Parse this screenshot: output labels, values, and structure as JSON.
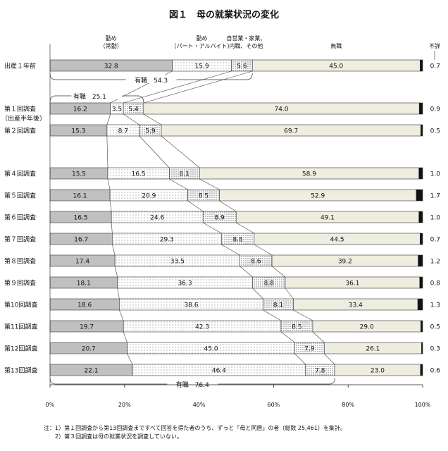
{
  "title": "図１　母の就業状況の変化",
  "chart_data": {
    "type": "bar",
    "orientation": "horizontal",
    "stacked": true,
    "normalized": true,
    "title": "図１　母の就業状況の変化",
    "xlim": [
      0,
      100
    ],
    "x_ticks": [
      "0%",
      "20%",
      "40%",
      "60%",
      "80%",
      "100%"
    ],
    "grid": false,
    "categories": [
      "出産１年前",
      "第１回調査",
      "第２回調査",
      "第４回調査",
      "第５回調査",
      "第６回調査",
      "第７回調査",
      "第８回調査",
      "第９回調査",
      "第10回調査",
      "第11回調査",
      "第12回調査",
      "第13回調査"
    ],
    "category_sublabels": {
      "第１回調査": "（出産半年後）"
    },
    "series": [
      {
        "name": "勤め（常勤）",
        "header_lines": [
          "勤め",
          "（常勤）"
        ],
        "color": "#c0c0c0",
        "values": [
          32.8,
          16.2,
          15.3,
          15.5,
          16.1,
          16.5,
          16.7,
          17.4,
          18.1,
          18.6,
          19.7,
          20.7,
          22.1
        ]
      },
      {
        "name": "勤め（パート・アルバイト）",
        "header_lines": [
          "勤め",
          "（パート・アルバイト）"
        ],
        "color": "#ffffff",
        "pattern": "dots",
        "values": [
          15.9,
          3.5,
          8.7,
          16.5,
          20.9,
          24.6,
          29.3,
          33.5,
          36.3,
          38.6,
          42.3,
          45.0,
          46.4
        ]
      },
      {
        "name": "自営業・家業、内職、その他",
        "header_lines": [
          "自営業・家業、",
          "内職、その他"
        ],
        "color": "#ffffff",
        "pattern": "dense-dots",
        "values": [
          5.6,
          5.4,
          5.9,
          8.1,
          8.5,
          8.9,
          8.8,
          8.6,
          8.8,
          8.1,
          8.5,
          7.9,
          7.8
        ]
      },
      {
        "name": "無職",
        "header_lines": [
          "無職"
        ],
        "color": "#efede0",
        "values": [
          45.0,
          74.0,
          69.7,
          58.9,
          52.9,
          49.1,
          44.5,
          39.2,
          36.1,
          33.4,
          29.0,
          26.1,
          23.0
        ]
      },
      {
        "name": "不詳",
        "header_lines": [
          "不詳"
        ],
        "color": "#111111",
        "values": [
          0.7,
          0.9,
          0.5,
          1.0,
          1.7,
          1.0,
          0.7,
          1.2,
          0.8,
          1.3,
          0.5,
          0.3,
          0.6
        ]
      }
    ],
    "annotations": [
      {
        "text": "有職　54.3",
        "row": "出産１年前",
        "value": 54.3,
        "position": "below"
      },
      {
        "text": "有職　25.1",
        "row": "第１回調査",
        "value": 25.1,
        "position": "above"
      },
      {
        "text": "有職　76.4",
        "row": "第13回調査",
        "value": 76.4,
        "position": "below"
      }
    ]
  },
  "notes": [
    "注：1）第１回調査から第13回調査まですべて回答を得た者のうち、ずっと「母と同居」の者（総数 25,461）を集計。",
    "　　2）第３回調査は母の就業状況を調査していない。"
  ]
}
